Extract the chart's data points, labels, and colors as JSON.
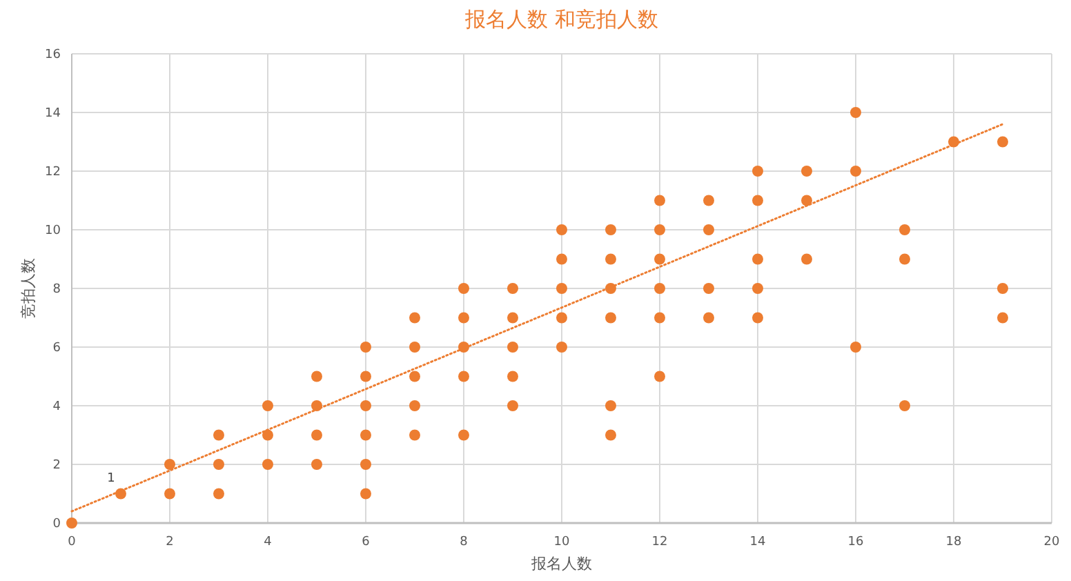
{
  "chart_data": {
    "type": "scatter",
    "title": "报名人数 和竞拍人数",
    "xlabel": "报名人数",
    "ylabel": "竞拍人数",
    "xlim": [
      0,
      20
    ],
    "xticks": [
      0,
      2,
      4,
      6,
      8,
      10,
      12,
      14,
      16,
      18,
      20
    ],
    "ylim": [
      0,
      16
    ],
    "yticks": [
      0,
      2,
      4,
      6,
      8,
      10,
      12,
      14,
      16
    ],
    "grid": true,
    "series": [
      {
        "color": "#ed7d31",
        "marker": "circle",
        "x": [
          0,
          1,
          2,
          2,
          3,
          3,
          3,
          4,
          4,
          4,
          5,
          5,
          5,
          5,
          6,
          6,
          6,
          6,
          6,
          6,
          7,
          7,
          7,
          7,
          7,
          8,
          8,
          8,
          8,
          8,
          9,
          9,
          9,
          9,
          9,
          10,
          10,
          10,
          10,
          10,
          11,
          11,
          11,
          11,
          11,
          11,
          12,
          12,
          12,
          12,
          12,
          12,
          13,
          13,
          13,
          13,
          14,
          14,
          14,
          14,
          14,
          15,
          15,
          15,
          16,
          16,
          16,
          17,
          17,
          17,
          18,
          19,
          19,
          19
        ],
        "values": [
          0,
          1,
          1,
          2,
          1,
          2,
          3,
          2,
          3,
          4,
          2,
          3,
          4,
          5,
          1,
          2,
          3,
          4,
          5,
          6,
          3,
          4,
          5,
          6,
          7,
          3,
          5,
          6,
          7,
          8,
          4,
          5,
          6,
          7,
          8,
          6,
          7,
          8,
          9,
          10,
          3,
          4,
          7,
          8,
          9,
          10,
          5,
          7,
          8,
          9,
          10,
          11,
          7,
          8,
          10,
          11,
          7,
          8,
          9,
          11,
          12,
          9,
          11,
          12,
          6,
          12,
          14,
          4,
          9,
          10,
          13,
          7,
          8,
          13
        ]
      },
      {
        "type": "line",
        "color": "#ed7d31",
        "marker": "none",
        "line_style": "dotted",
        "x": [
          0,
          19
        ],
        "values": [
          0.4,
          13.6
        ]
      }
    ],
    "annotations": [
      {
        "text": "1",
        "x": 1,
        "y": 1
      }
    ]
  }
}
